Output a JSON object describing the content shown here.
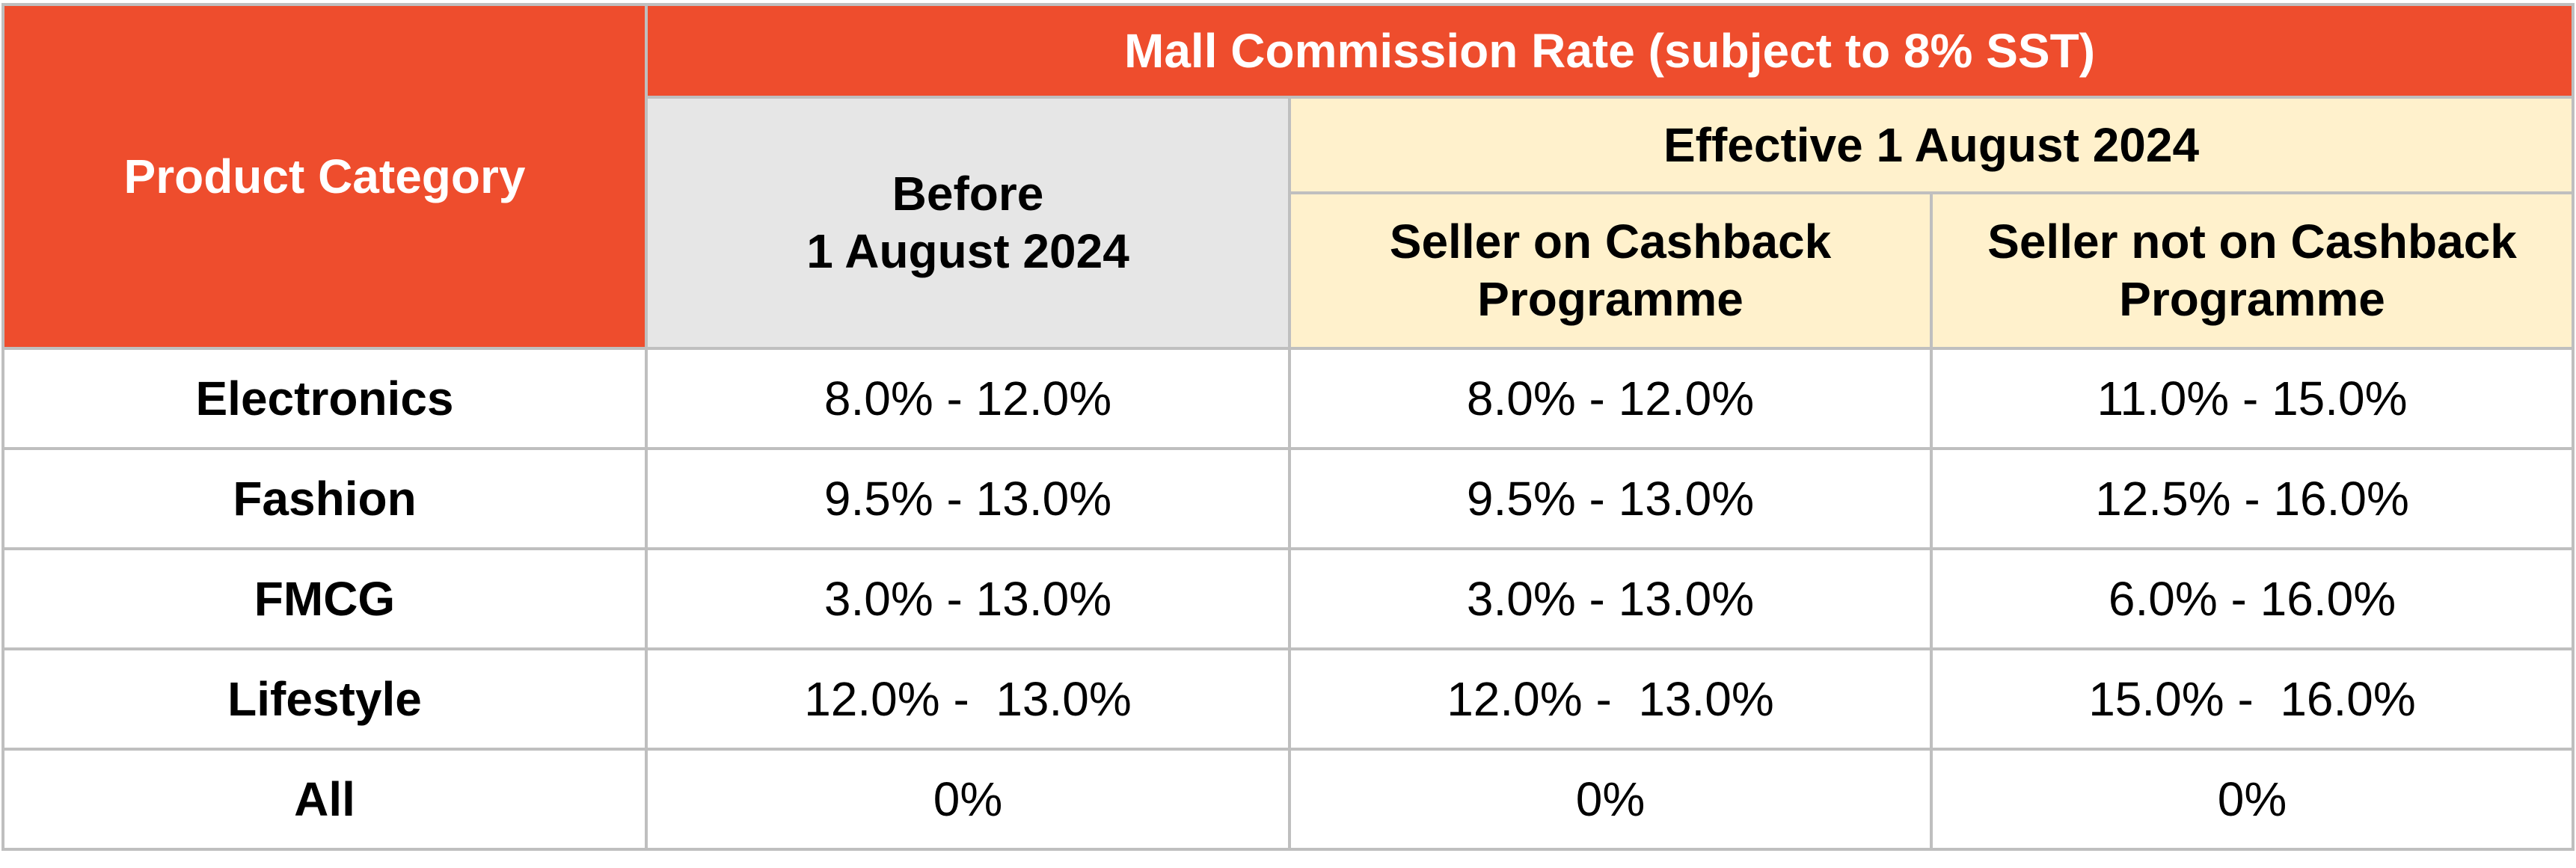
{
  "header": {
    "category_label": "Product Category",
    "main_label": "Mall Commission Rate (subject to 8% SST)",
    "before_label": "Before\n1 August 2024",
    "effective_label": "Effective 1 August 2024",
    "cashback_label": "Seller on Cashback\nProgramme",
    "no_cashback_label": "Seller not on Cashback\nProgramme"
  },
  "colors": {
    "accent": "#ee4d2d",
    "before_bg": "#e6e6e6",
    "effective_bg": "#fff1cc",
    "border": "#bfbfbf"
  },
  "rows": [
    {
      "category": "Electronics",
      "before": "8.0% - 12.0%",
      "cashback": "8.0% - 12.0%",
      "no_cashback": "11.0% - 15.0%"
    },
    {
      "category": "Fashion",
      "before": "9.5% - 13.0%",
      "cashback": "9.5% - 13.0%",
      "no_cashback": "12.5% - 16.0%"
    },
    {
      "category": "FMCG",
      "before": "3.0% - 13.0%",
      "cashback": "3.0% - 13.0%",
      "no_cashback": "6.0% - 16.0%"
    },
    {
      "category": "Lifestyle",
      "before": "12.0% -  13.0%",
      "cashback": "12.0% -  13.0%",
      "no_cashback": "15.0% -  16.0%"
    },
    {
      "category": "All",
      "before": "0%",
      "cashback": "0%",
      "no_cashback": "0%"
    }
  ]
}
